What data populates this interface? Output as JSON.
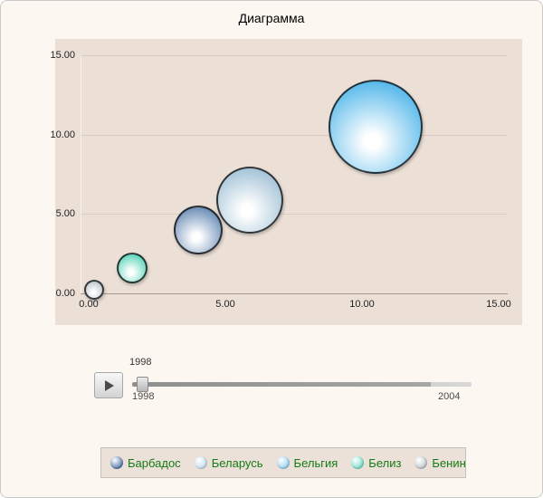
{
  "chart_data": {
    "type": "scatter",
    "title": "Диаграмма",
    "xlabel": "",
    "ylabel": "",
    "xlim": [
      0,
      15
    ],
    "ylim": [
      0,
      15
    ],
    "grid": true,
    "legend_position": "bottom",
    "x_ticks": [
      "0.00",
      "5.00",
      "10.00",
      "15.00"
    ],
    "y_ticks": [
      "0.00",
      "5.00",
      "10.00",
      "15.00"
    ],
    "series": [
      {
        "name": "Бенин",
        "x": 0.2,
        "y": 0.2,
        "radius_px": 11,
        "color": "#b9c3cb"
      },
      {
        "name": "Белиз",
        "x": 1.6,
        "y": 1.6,
        "radius_px": 17,
        "color": "#4fd2b4"
      },
      {
        "name": "Барбадос",
        "x": 4.0,
        "y": 4.0,
        "radius_px": 27,
        "color": "#5d82b0"
      },
      {
        "name": "Беларусь",
        "x": 5.9,
        "y": 5.9,
        "radius_px": 37,
        "color": "#9cbdd3"
      },
      {
        "name": "Бельгия",
        "x": 10.5,
        "y": 10.5,
        "radius_px": 52,
        "color": "#45b1e8"
      }
    ]
  },
  "slider": {
    "current_label": "1998",
    "start_label": "1998",
    "end_label": "2004"
  },
  "legend": {
    "items": [
      {
        "label": "Барбадос",
        "color": "#4a6fa5"
      },
      {
        "label": "Беларусь",
        "color": "#c3dcea"
      },
      {
        "label": "Бельгия",
        "color": "#8fd0f0"
      },
      {
        "label": "Белиз",
        "color": "#6fdec6"
      },
      {
        "label": "Бенин",
        "color": "#bfc5c9"
      }
    ]
  },
  "colors": {
    "page_background": "#fcf8f1",
    "chart_background": "#ebdfd6",
    "panel_background": "#ece1d8",
    "legend_text": "#157a15"
  }
}
